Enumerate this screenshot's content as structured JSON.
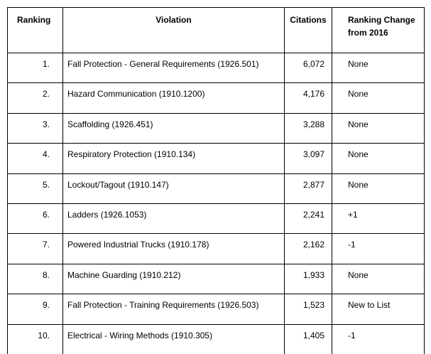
{
  "table": {
    "header": [
      "Ranking",
      "Violation",
      "Citations",
      "Ranking Change from 2016"
    ],
    "rows": [
      [
        "1.",
        "Fall Protection - General Requirements (1926.501)",
        "6,072",
        "None"
      ],
      [
        "2.",
        "Hazard Communication (1910.1200)",
        "4,176",
        "None"
      ],
      [
        "3.",
        "Scaffolding (1926.451)",
        "3,288",
        "None"
      ],
      [
        "4.",
        "Respiratory Protection (1910.134)",
        "3,097",
        "None"
      ],
      [
        "5.",
        "Lockout/Tagout (1910.147)",
        "2,877",
        "None"
      ],
      [
        "6.",
        "Ladders (1926.1053)",
        "2,241",
        "+1"
      ],
      [
        "7.",
        "Powered Industrial Trucks (1910.178)",
        "2,162",
        "-1"
      ],
      [
        "8.",
        "Machine Guarding (1910.212)",
        "1,933",
        "None"
      ],
      [
        "9.",
        "Fall Protection - Training Requirements (1926.503)",
        "1,523",
        "New to List"
      ],
      [
        "10.",
        "Electrical - Wiring Methods (1910.305)",
        "1,405",
        "-1"
      ]
    ]
  }
}
